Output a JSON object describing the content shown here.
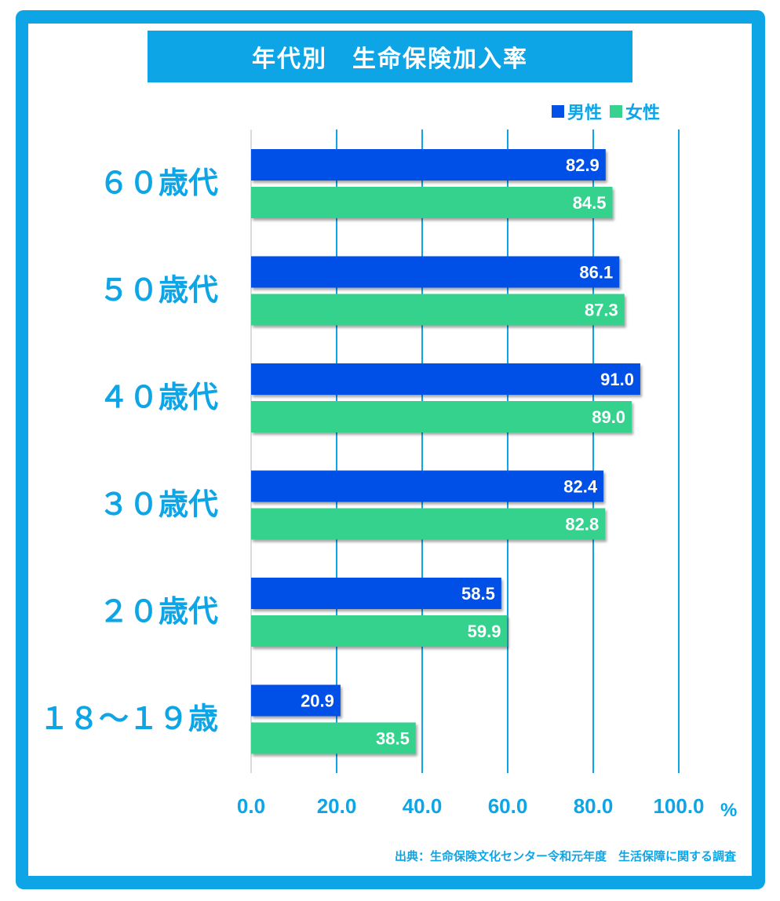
{
  "colors": {
    "frame": "#0ea5e6",
    "male": "#0550e6",
    "female": "#36d28e",
    "axis_text": "#0ea5e6",
    "grid": "#0ea5e6"
  },
  "legend": {
    "male_label": "男性",
    "female_label": "女性"
  },
  "source": "出典：生命保険文化センター令和元年度　生活保障に関する調査",
  "chart_data": {
    "type": "bar",
    "orientation": "horizontal",
    "title": "年代別　生命保険加入率",
    "categories": [
      "６０歳代",
      "５０歳代",
      "４０歳代",
      "３０歳代",
      "２０歳代",
      "１８～１９歳"
    ],
    "series": [
      {
        "name": "男性",
        "values": [
          82.9,
          86.1,
          91.0,
          82.4,
          58.5,
          20.9
        ],
        "labels": [
          "82.9",
          "86.1",
          "91.0",
          "82.4",
          "58.5",
          "20.9"
        ]
      },
      {
        "name": "女性",
        "values": [
          84.5,
          87.3,
          89.0,
          82.8,
          59.9,
          38.5
        ],
        "labels": [
          "84.5",
          "87.3",
          "89.0",
          "82.8",
          "59.9",
          "38.5"
        ]
      }
    ],
    "xlim": [
      0,
      100
    ],
    "x_ticks": [
      0,
      20,
      40,
      60,
      80,
      100
    ],
    "x_tick_labels": [
      "0.0",
      "20.0",
      "40.0",
      "60.0",
      "80.0",
      "100.0"
    ],
    "x_unit": "%",
    "grid": true,
    "legend_position": "top-right"
  }
}
